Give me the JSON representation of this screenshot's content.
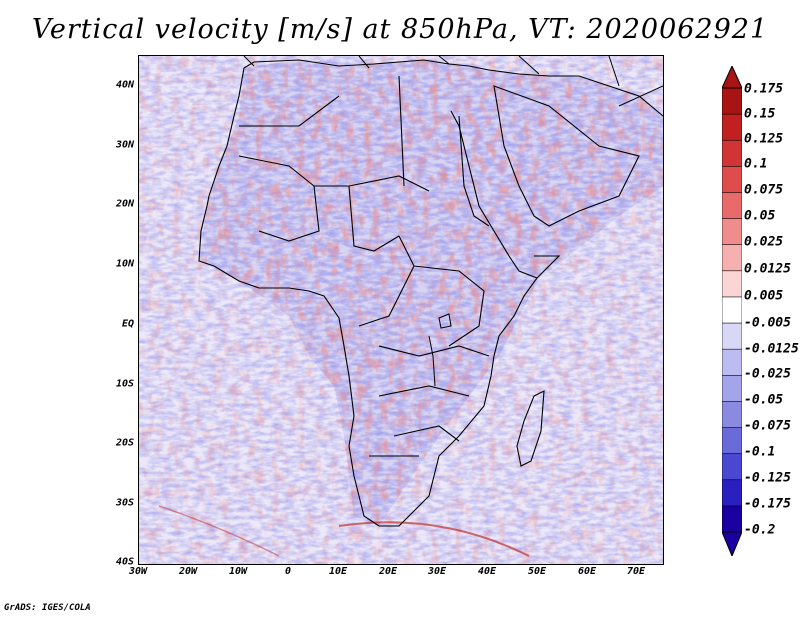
{
  "title": "Vertical velocity [m/s] at 850hPa, VT: 2020062921",
  "footer": "GrADS: IGES/COLA",
  "lat_labels": [
    "40N",
    "30N",
    "20N",
    "10N",
    "EQ",
    "10S",
    "20S",
    "30S",
    "40S"
  ],
  "lon_labels": [
    "30W",
    "20W",
    "10W",
    "0",
    "10E",
    "20E",
    "30E",
    "40E",
    "50E",
    "60E",
    "70E"
  ],
  "colorbar": {
    "colors": [
      "#1a00a0",
      "#2a20c0",
      "#4a48d0",
      "#6a6ad8",
      "#8a8ae0",
      "#a4a4e8",
      "#bcbcf0",
      "#d8d8f6",
      "#ffffff",
      "#fbd4d4",
      "#f7b0b0",
      "#f08c8c",
      "#e86a6a",
      "#de4c4c",
      "#d03434",
      "#c02020",
      "#a81414"
    ],
    "labels": [
      "0.175",
      "0.15",
      "0.125",
      "0.1",
      "0.075",
      "0.05",
      "0.025",
      "0.0125",
      "0.005",
      "-0.005",
      "-0.0125",
      "-0.025",
      "-0.05",
      "-0.075",
      "-0.1",
      "-0.125",
      "-0.175",
      "-0.2"
    ]
  }
}
